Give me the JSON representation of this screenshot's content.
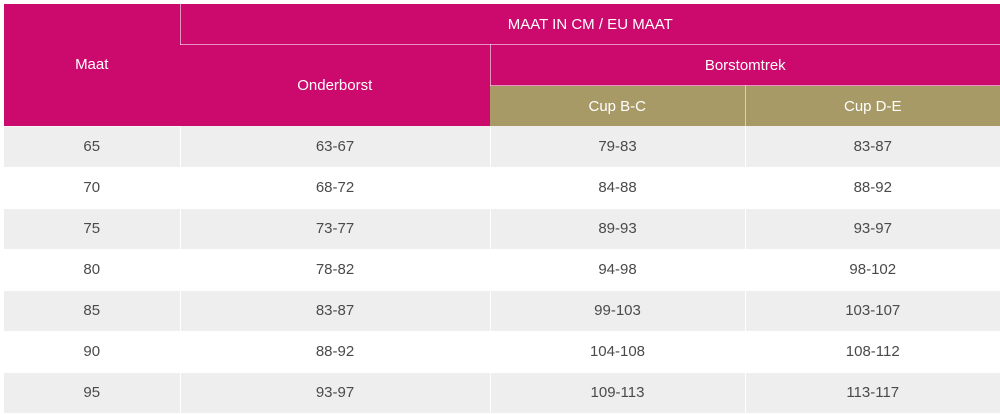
{
  "table": {
    "header": {
      "top": "MAAT IN CM / EU MAAT",
      "maat": "Maat",
      "onderborst": "Onderborst",
      "borstomtrek": "Borstomtrek",
      "cup_bc": "Cup B-C",
      "cup_de": "Cup D-E"
    },
    "colors": {
      "header_pink": "#cc0a6e",
      "header_gold": "#a89a67",
      "row_stripe": "#eeeeee"
    },
    "rows": [
      [
        "65",
        "63-67",
        "79-83",
        "83-87"
      ],
      [
        "70",
        "68-72",
        "84-88",
        "88-92"
      ],
      [
        "75",
        "73-77",
        "89-93",
        "93-97"
      ],
      [
        "80",
        "78-82",
        "94-98",
        "98-102"
      ],
      [
        "85",
        "83-87",
        "99-103",
        "103-107"
      ],
      [
        "90",
        "88-92",
        "104-108",
        "108-112"
      ],
      [
        "95",
        "93-97",
        "109-113",
        "113-117"
      ]
    ]
  }
}
